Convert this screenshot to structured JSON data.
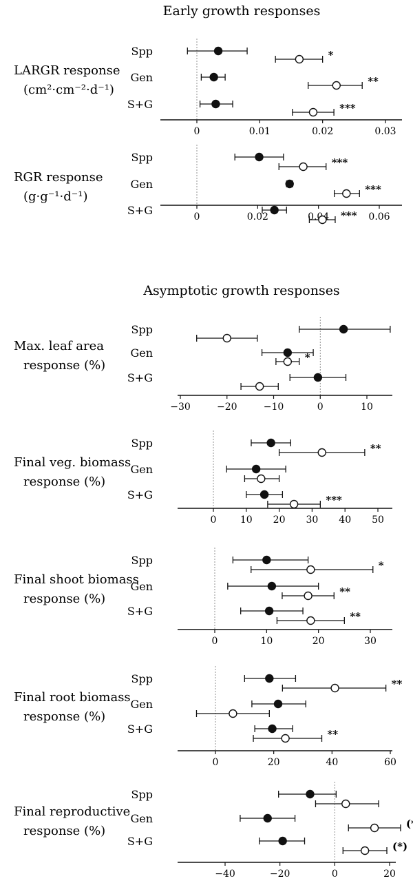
{
  "sections": [
    {
      "title": "Early growth responses"
    },
    {
      "title": "Asymptotic growth responses"
    }
  ],
  "chart_data": [
    {
      "type": "scatter",
      "label": [
        "LARGR response",
        "(cm²·cm⁻²·d⁻¹)"
      ],
      "groups": [
        "Spp",
        "Gen",
        "S+G"
      ],
      "xlim": [
        -0.004,
        0.031
      ],
      "xticks": [
        0,
        0.01,
        0.02,
        0.03
      ],
      "xticklabels": [
        "0",
        "0.01",
        "0.02",
        "0.03"
      ],
      "series": [
        {
          "marker": "filled",
          "mean": [
            0.0034,
            0.0027,
            0.003
          ],
          "lo": [
            -0.0015,
            0.0007,
            0.0005
          ],
          "hi": [
            0.008,
            0.0045,
            0.0057
          ]
        },
        {
          "marker": "open",
          "mean": [
            0.0163,
            0.0222,
            0.0185
          ],
          "lo": [
            0.0125,
            0.0177,
            0.0152
          ],
          "hi": [
            0.02,
            0.0263,
            0.0218
          ]
        }
      ],
      "significance": [
        "*",
        "**",
        "***"
      ]
    },
    {
      "type": "scatter",
      "label": [
        "RGR response",
        "(g·g⁻¹·d⁻¹)"
      ],
      "groups": [
        "Spp",
        "Gen",
        "S+G"
      ],
      "xlim": [
        -0.008,
        0.064
      ],
      "xticks": [
        0,
        0.02,
        0.04,
        0.06
      ],
      "xticklabels": [
        "0",
        "0.02",
        "0.04",
        "0.06"
      ],
      "series": [
        {
          "marker": "filled",
          "mean": [
            0.0205,
            0.0305,
            0.0255
          ],
          "lo": [
            0.0125,
            0.0295,
            0.0215
          ],
          "hi": [
            0.0285,
            0.0315,
            0.0295
          ]
        },
        {
          "marker": "open",
          "mean": [
            0.035,
            0.0492,
            0.0413
          ],
          "lo": [
            0.027,
            0.0452,
            0.037
          ],
          "hi": [
            0.0425,
            0.0535,
            0.0455
          ]
        }
      ],
      "significance": [
        "***",
        "***",
        "***"
      ]
    },
    {
      "type": "scatter",
      "label": [
        "Max. leaf area",
        "response (%)"
      ],
      "groups": [
        "Spp",
        "Gen",
        "S+G"
      ],
      "xlim": [
        -30,
        16
      ],
      "xticks": [
        -30,
        -20,
        -10,
        0,
        10
      ],
      "xticklabels": [
        "−30",
        "−20",
        "−10",
        "0",
        "10"
      ],
      "series": [
        {
          "marker": "filled",
          "mean": [
            5.0,
            -7.0,
            -0.5
          ],
          "lo": [
            -4.5,
            -12.5,
            -6.5
          ],
          "hi": [
            15.0,
            -1.5,
            5.5
          ]
        },
        {
          "marker": "open",
          "mean": [
            -20.0,
            -7.0,
            -13.0
          ],
          "lo": [
            -26.5,
            -9.5,
            -17.0
          ],
          "hi": [
            -13.5,
            -4.5,
            -9.0
          ]
        }
      ],
      "significance": [
        "",
        "*",
        ""
      ]
    },
    {
      "type": "scatter",
      "label": [
        "Final veg. biomass",
        "response (%)"
      ],
      "groups": [
        "Spp",
        "Gen",
        "S+G"
      ],
      "xlim": [
        -10,
        51
      ],
      "xticks": [
        0,
        10,
        20,
        30,
        40,
        50
      ],
      "xticklabels": [
        "0",
        "10",
        "20",
        "30",
        "40",
        "50"
      ],
      "series": [
        {
          "marker": "filled",
          "mean": [
            17.5,
            13.0,
            15.5
          ],
          "lo": [
            11.5,
            4.0,
            10.0
          ],
          "hi": [
            23.5,
            22.0,
            21.0
          ]
        },
        {
          "marker": "open",
          "mean": [
            33.0,
            14.5,
            24.5
          ],
          "lo": [
            20.0,
            9.5,
            16.5
          ],
          "hi": [
            46.0,
            20.0,
            32.5
          ]
        }
      ],
      "significance": [
        "**",
        "",
        "***"
      ]
    },
    {
      "type": "scatter",
      "label": [
        "Final shoot biomass",
        "response (%)"
      ],
      "groups": [
        "Spp",
        "Gen",
        "S+G"
      ],
      "xlim": [
        -6,
        34
      ],
      "xticks": [
        0,
        10,
        20,
        30
      ],
      "xticklabels": [
        "0",
        "10",
        "20",
        "30"
      ],
      "series": [
        {
          "marker": "filled",
          "mean": [
            10.0,
            11.0,
            10.5
          ],
          "lo": [
            3.5,
            2.5,
            5.0
          ],
          "hi": [
            18.0,
            20.0,
            17.0
          ]
        },
        {
          "marker": "open",
          "mean": [
            18.5,
            18.0,
            18.5
          ],
          "lo": [
            7.0,
            13.0,
            12.0
          ],
          "hi": [
            30.5,
            23.0,
            25.0
          ]
        }
      ],
      "significance": [
        "*",
        "**",
        "**"
      ]
    },
    {
      "type": "scatter",
      "label": [
        "Final root biomass",
        "response (%)"
      ],
      "groups": [
        "Spp",
        "Gen",
        "S+G"
      ],
      "xlim": [
        -12,
        61
      ],
      "xticks": [
        0,
        20,
        40,
        60
      ],
      "xticklabels": [
        "0",
        "20",
        "40",
        "60"
      ],
      "series": [
        {
          "marker": "filled",
          "mean": [
            18.5,
            21.5,
            19.5
          ],
          "lo": [
            10.0,
            12.5,
            13.5
          ],
          "hi": [
            27.5,
            31.0,
            26.5
          ]
        },
        {
          "marker": "open",
          "mean": [
            41.0,
            6.0,
            24.0
          ],
          "lo": [
            23.0,
            -6.5,
            13.0
          ],
          "hi": [
            58.5,
            18.5,
            36.5
          ]
        }
      ],
      "significance": [
        "**",
        "",
        "**"
      ]
    },
    {
      "type": "scatter",
      "label": [
        "Final reproductive",
        "response (%)"
      ],
      "groups": [
        "Spp",
        "Gen",
        "S+G"
      ],
      "xlim": [
        -43,
        28
      ],
      "xticks": [
        -40,
        -20,
        0,
        20
      ],
      "xticklabels": [
        "−40",
        "−20",
        "0",
        "20"
      ],
      "series": [
        {
          "marker": "filled",
          "mean": [
            -9.0,
            -24.5,
            -19.0
          ],
          "lo": [
            -20.5,
            -34.5,
            -27.5
          ],
          "hi": [
            0.5,
            -14.5,
            -11.0
          ]
        },
        {
          "marker": "open",
          "mean": [
            4.0,
            14.5,
            11.0
          ],
          "lo": [
            -7.0,
            5.0,
            3.0
          ],
          "hi": [
            16.0,
            24.0,
            19.0
          ]
        }
      ],
      "significance": [
        "",
        "(*)",
        "(*)"
      ]
    }
  ]
}
